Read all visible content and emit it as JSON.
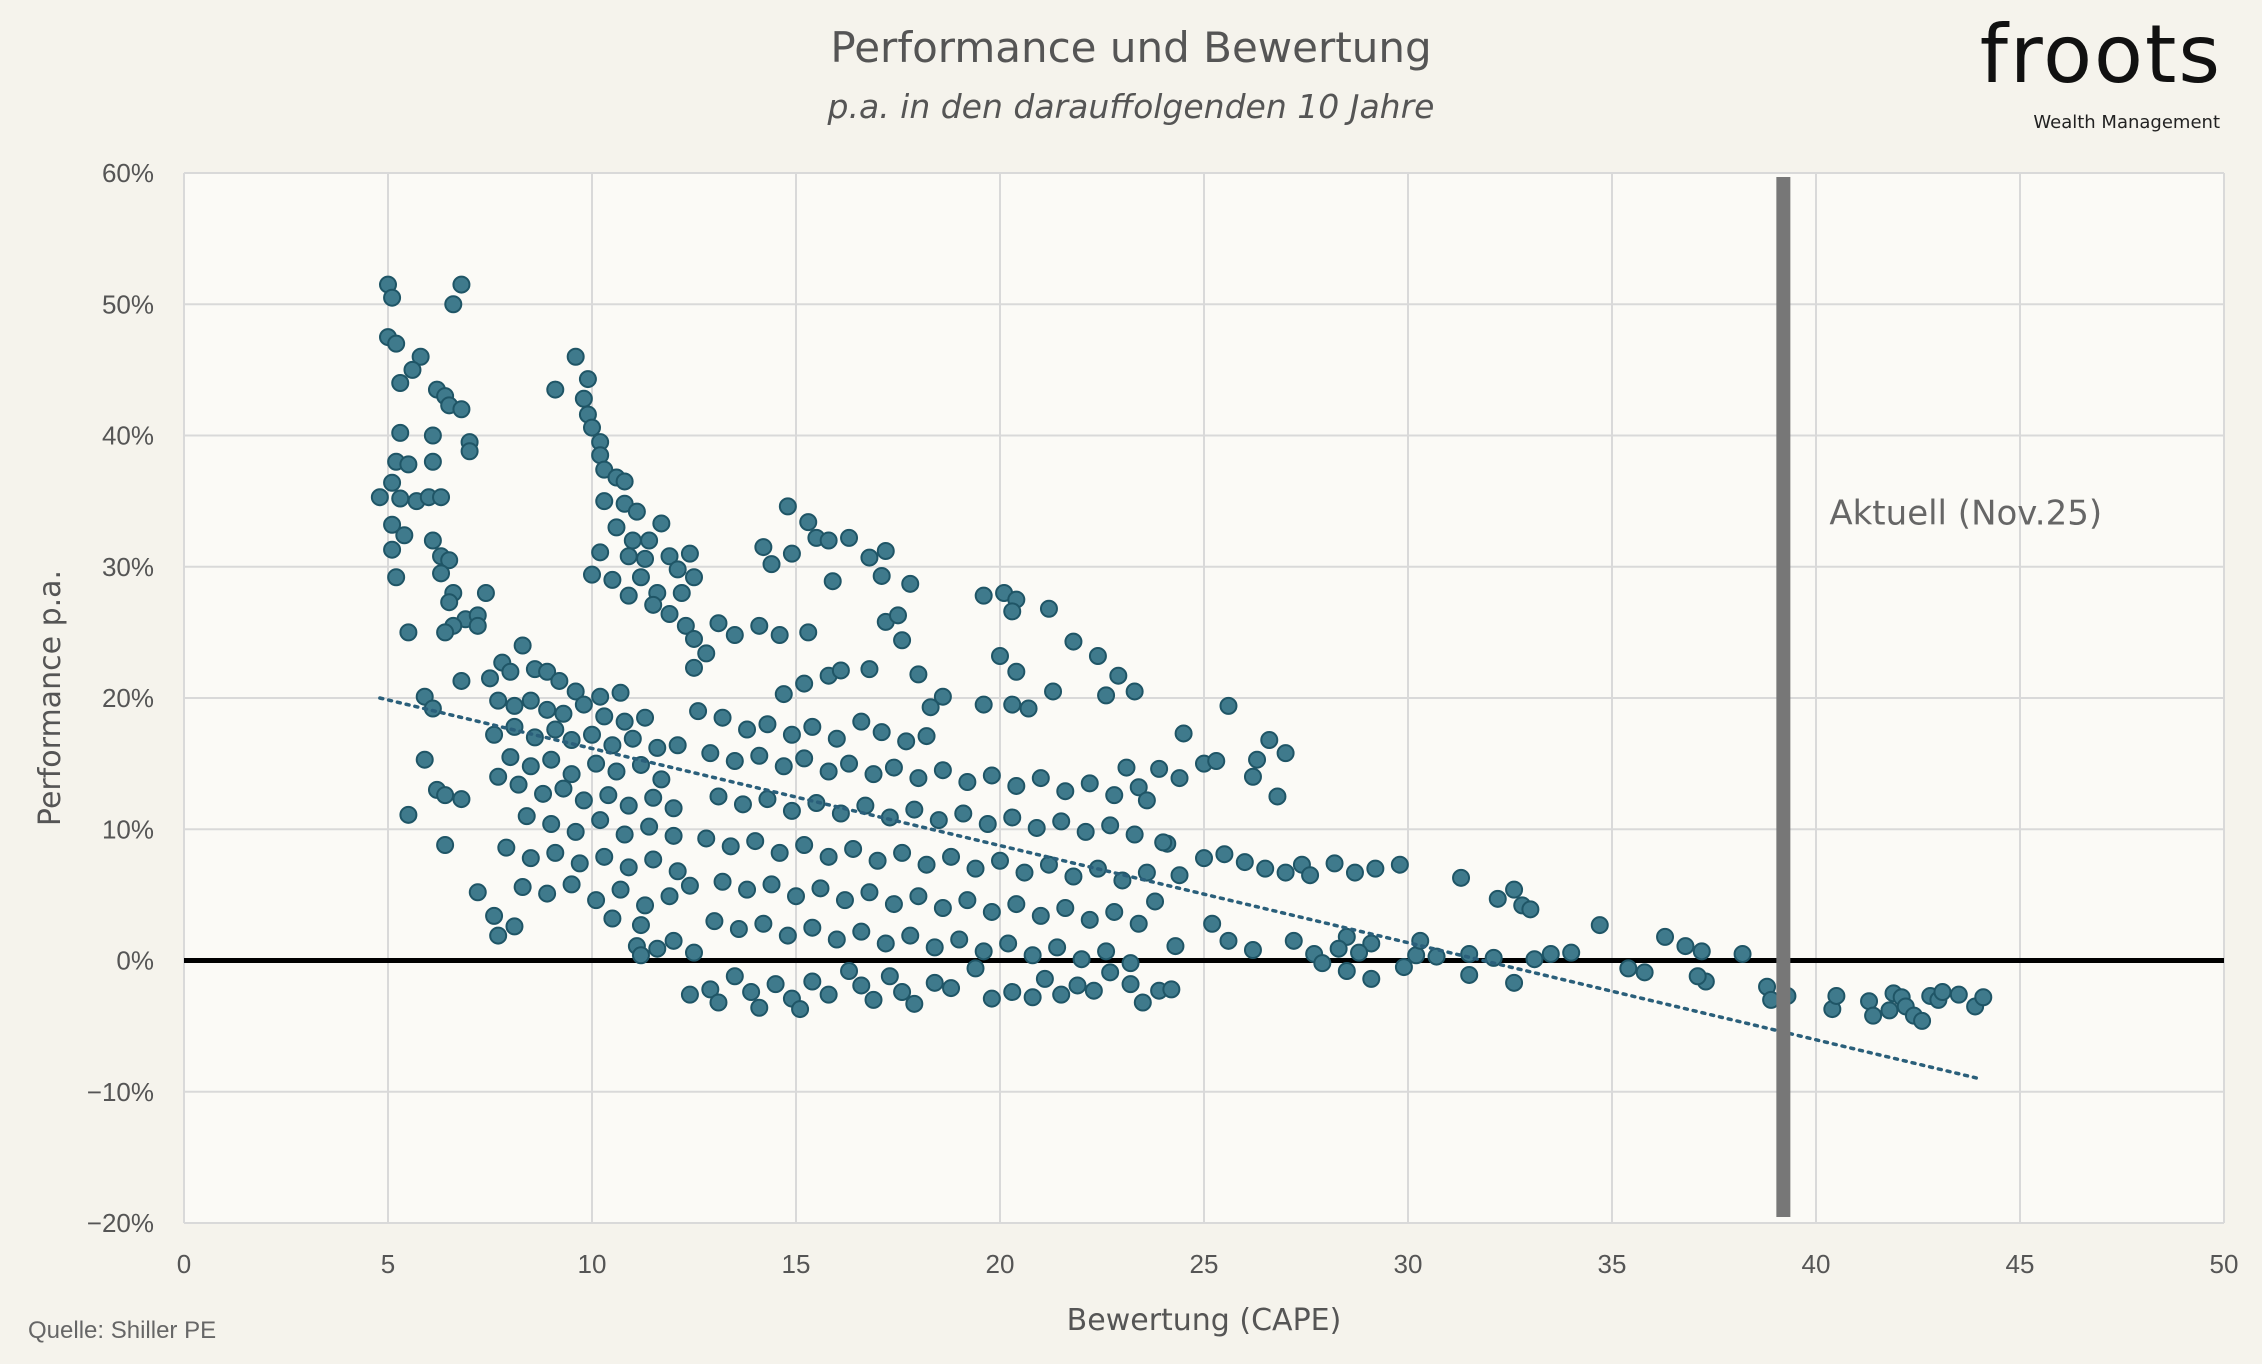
{
  "logo": {
    "name": "froots",
    "tagline": "Wealth Management"
  },
  "source": "Quelle: Shiller PE",
  "colors": {
    "background": "#f5f3ec",
    "plot_background": "#fbfaf6",
    "point_fill": "#3f7a8c",
    "point_stroke": "#1f5566",
    "trendline": "#2a5f7a",
    "marker_line": "#777777",
    "zero_line": "#000000",
    "grid": "#d9d9d9"
  },
  "chart_data": {
    "type": "scatter",
    "title": "Performance und Bewertung",
    "subtitle": "p.a. in den darauffolgenden 10 Jahre",
    "xlabel": "Bewertung (CAPE)",
    "ylabel": "Performance p.a.",
    "xlim": [
      0,
      50
    ],
    "ylim": [
      -20,
      60
    ],
    "xticks": [
      0,
      5,
      10,
      15,
      20,
      25,
      30,
      35,
      40,
      45,
      50
    ],
    "yticks": [
      -20,
      -10,
      0,
      10,
      20,
      30,
      40,
      50,
      60
    ],
    "ytick_labels": [
      "−20%",
      "−10%",
      "0%",
      "10%",
      "20%",
      "30%",
      "40%",
      "50%",
      "60%"
    ],
    "grid": true,
    "zero_line": true,
    "trendline": {
      "style": "dotted",
      "from": [
        4.8,
        20
      ],
      "to": [
        44,
        -9
      ]
    },
    "marker": {
      "x": 39.2,
      "label": "Aktuell (Nov.25)"
    },
    "points": [
      [
        5,
        51.5
      ],
      [
        5.1,
        50.5
      ],
      [
        6.6,
        50
      ],
      [
        6.8,
        51.5
      ],
      [
        5,
        47.5
      ],
      [
        5.2,
        47
      ],
      [
        5.8,
        46
      ],
      [
        5.6,
        45
      ],
      [
        5.3,
        44
      ],
      [
        6.2,
        43.5
      ],
      [
        6.4,
        43
      ],
      [
        6.5,
        42.3
      ],
      [
        6.8,
        42
      ],
      [
        5.3,
        40.2
      ],
      [
        6.1,
        40
      ],
      [
        7,
        39.5
      ],
      [
        7,
        38.8
      ],
      [
        5.2,
        38
      ],
      [
        5.5,
        37.8
      ],
      [
        6.1,
        38
      ],
      [
        5.1,
        36.4
      ],
      [
        4.8,
        35.3
      ],
      [
        5.3,
        35.2
      ],
      [
        5.7,
        35
      ],
      [
        6,
        35.3
      ],
      [
        6.3,
        35.3
      ],
      [
        5.1,
        33.2
      ],
      [
        5.4,
        32.4
      ],
      [
        6.1,
        32
      ],
      [
        5.1,
        31.3
      ],
      [
        6.3,
        30.8
      ],
      [
        6.5,
        30.5
      ],
      [
        6.3,
        29.5
      ],
      [
        5.2,
        29.2
      ],
      [
        6.6,
        28
      ],
      [
        6.5,
        27.3
      ],
      [
        7.4,
        28
      ],
      [
        6.9,
        26
      ],
      [
        7.2,
        26.3
      ],
      [
        6.6,
        25.5
      ],
      [
        6.4,
        25
      ],
      [
        5.5,
        25
      ],
      [
        7.2,
        25.5
      ],
      [
        6.8,
        21.3
      ],
      [
        5.9,
        20.1
      ],
      [
        6.1,
        19.2
      ],
      [
        5.9,
        15.3
      ],
      [
        6.2,
        13
      ],
      [
        6.4,
        12.6
      ],
      [
        6.8,
        12.3
      ],
      [
        5.5,
        11.1
      ],
      [
        6.4,
        8.8
      ],
      [
        7.2,
        5.2
      ],
      [
        7.6,
        3.4
      ],
      [
        7.7,
        1.9
      ],
      [
        8.1,
        2.6
      ],
      [
        9.6,
        46
      ],
      [
        9.9,
        44.3
      ],
      [
        9.8,
        42.8
      ],
      [
        9.9,
        41.6
      ],
      [
        9.1,
        43.5
      ],
      [
        10,
        40.6
      ],
      [
        10.2,
        39.5
      ],
      [
        10.2,
        38.5
      ],
      [
        10.3,
        37.4
      ],
      [
        10.6,
        36.8
      ],
      [
        10.8,
        36.5
      ],
      [
        10.3,
        35
      ],
      [
        10.8,
        34.8
      ],
      [
        11.1,
        34.2
      ],
      [
        10.6,
        33
      ],
      [
        11,
        32
      ],
      [
        11.7,
        33.3
      ],
      [
        11.4,
        32
      ],
      [
        10.2,
        31.1
      ],
      [
        10.9,
        30.8
      ],
      [
        11.3,
        30.6
      ],
      [
        11.9,
        30.8
      ],
      [
        12.4,
        31
      ],
      [
        12.1,
        29.8
      ],
      [
        10,
        29.4
      ],
      [
        10.5,
        29
      ],
      [
        11.2,
        29.2
      ],
      [
        12.5,
        29.2
      ],
      [
        10.9,
        27.8
      ],
      [
        11.6,
        28
      ],
      [
        12.2,
        28
      ],
      [
        11.5,
        27.1
      ],
      [
        11.9,
        26.4
      ],
      [
        12.3,
        25.5
      ],
      [
        12.5,
        24.5
      ],
      [
        13.1,
        25.7
      ],
      [
        12.8,
        23.4
      ],
      [
        13.5,
        24.8
      ],
      [
        12.5,
        22.3
      ],
      [
        14.1,
        25.5
      ],
      [
        14.6,
        24.8
      ],
      [
        15.3,
        25
      ],
      [
        15.8,
        21.7
      ],
      [
        15.2,
        21.1
      ],
      [
        14.7,
        20.3
      ],
      [
        14.4,
        30.2
      ],
      [
        14.2,
        31.5
      ],
      [
        14.9,
        31
      ],
      [
        14.8,
        34.6
      ],
      [
        15.3,
        33.4
      ],
      [
        15.5,
        32.2
      ],
      [
        15.8,
        32
      ],
      [
        16.3,
        32.2
      ],
      [
        16.8,
        30.7
      ],
      [
        17.2,
        31.2
      ],
      [
        17.1,
        29.3
      ],
      [
        17.8,
        28.7
      ],
      [
        15.9,
        28.9
      ],
      [
        16.1,
        22.1
      ],
      [
        16.8,
        22.2
      ],
      [
        17.6,
        24.4
      ],
      [
        17.2,
        25.8
      ],
      [
        17.5,
        26.3
      ],
      [
        18,
        21.8
      ],
      [
        18.6,
        20.1
      ],
      [
        19.6,
        27.8
      ],
      [
        20.1,
        28
      ],
      [
        20.4,
        27.5
      ],
      [
        20.3,
        26.6
      ],
      [
        21.2,
        26.8
      ],
      [
        20,
        23.2
      ],
      [
        20.4,
        22
      ],
      [
        21.8,
        24.3
      ],
      [
        22.4,
        23.2
      ],
      [
        22.9,
        21.7
      ],
      [
        23.3,
        20.5
      ],
      [
        22.6,
        20.2
      ],
      [
        21.3,
        20.5
      ],
      [
        20.7,
        19.2
      ],
      [
        20.3,
        19.5
      ],
      [
        19.6,
        19.5
      ],
      [
        18.3,
        19.3
      ],
      [
        7.5,
        21.5
      ],
      [
        7.8,
        22.7
      ],
      [
        8,
        22
      ],
      [
        8.3,
        24
      ],
      [
        8.6,
        22.2
      ],
      [
        8.9,
        22
      ],
      [
        9.2,
        21.3
      ],
      [
        9.6,
        20.5
      ],
      [
        10.2,
        20.1
      ],
      [
        10.7,
        20.4
      ],
      [
        7.7,
        19.8
      ],
      [
        8.1,
        19.4
      ],
      [
        8.5,
        19.8
      ],
      [
        8.9,
        19.1
      ],
      [
        9.3,
        18.8
      ],
      [
        9.8,
        19.5
      ],
      [
        10.3,
        18.6
      ],
      [
        10.8,
        18.2
      ],
      [
        11.3,
        18.5
      ],
      [
        7.6,
        17.2
      ],
      [
        8.1,
        17.8
      ],
      [
        8.6,
        17
      ],
      [
        9.1,
        17.6
      ],
      [
        9.5,
        16.8
      ],
      [
        10,
        17.2
      ],
      [
        10.5,
        16.4
      ],
      [
        11,
        16.9
      ],
      [
        11.6,
        16.2
      ],
      [
        12.1,
        16.4
      ],
      [
        8,
        15.5
      ],
      [
        8.5,
        14.8
      ],
      [
        9,
        15.3
      ],
      [
        9.5,
        14.2
      ],
      [
        10.1,
        15
      ],
      [
        10.6,
        14.4
      ],
      [
        11.2,
        14.9
      ],
      [
        11.7,
        13.8
      ],
      [
        8.2,
        13.4
      ],
      [
        8.8,
        12.7
      ],
      [
        9.3,
        13.1
      ],
      [
        9.8,
        12.2
      ],
      [
        10.4,
        12.6
      ],
      [
        10.9,
        11.8
      ],
      [
        11.5,
        12.4
      ],
      [
        12,
        11.6
      ],
      [
        7.7,
        14
      ],
      [
        8.4,
        11
      ],
      [
        9,
        10.4
      ],
      [
        9.6,
        9.8
      ],
      [
        10.2,
        10.7
      ],
      [
        10.8,
        9.6
      ],
      [
        11.4,
        10.2
      ],
      [
        12,
        9.5
      ],
      [
        7.9,
        8.6
      ],
      [
        8.5,
        7.8
      ],
      [
        9.1,
        8.2
      ],
      [
        9.7,
        7.4
      ],
      [
        10.3,
        7.9
      ],
      [
        10.9,
        7.1
      ],
      [
        11.5,
        7.7
      ],
      [
        12.1,
        6.8
      ],
      [
        8.3,
        5.6
      ],
      [
        8.9,
        5.1
      ],
      [
        9.5,
        5.8
      ],
      [
        10.1,
        4.6
      ],
      [
        10.7,
        5.4
      ],
      [
        11.3,
        4.2
      ],
      [
        11.9,
        4.9
      ],
      [
        12.4,
        5.7
      ],
      [
        10.5,
        3.2
      ],
      [
        11.2,
        2.7
      ],
      [
        11.1,
        1.1
      ],
      [
        11.6,
        0.9
      ],
      [
        12,
        1.5
      ],
      [
        12.5,
        0.6
      ],
      [
        11.2,
        0.4
      ],
      [
        12.6,
        19
      ],
      [
        13.2,
        18.5
      ],
      [
        13.8,
        17.6
      ],
      [
        14.3,
        18
      ],
      [
        14.9,
        17.2
      ],
      [
        15.4,
        17.8
      ],
      [
        16,
        16.9
      ],
      [
        16.6,
        18.2
      ],
      [
        17.1,
        17.4
      ],
      [
        17.7,
        16.7
      ],
      [
        18.2,
        17.1
      ],
      [
        12.9,
        15.8
      ],
      [
        13.5,
        15.2
      ],
      [
        14.1,
        15.6
      ],
      [
        14.7,
        14.8
      ],
      [
        15.2,
        15.4
      ],
      [
        15.8,
        14.4
      ],
      [
        16.3,
        15
      ],
      [
        16.9,
        14.2
      ],
      [
        17.4,
        14.7
      ],
      [
        18,
        13.9
      ],
      [
        18.6,
        14.5
      ],
      [
        19.2,
        13.6
      ],
      [
        19.8,
        14.1
      ],
      [
        20.4,
        13.3
      ],
      [
        21,
        13.9
      ],
      [
        21.6,
        12.9
      ],
      [
        22.2,
        13.5
      ],
      [
        22.8,
        12.6
      ],
      [
        23.4,
        13.2
      ],
      [
        23.9,
        14.6
      ],
      [
        13.1,
        12.5
      ],
      [
        13.7,
        11.9
      ],
      [
        14.3,
        12.3
      ],
      [
        14.9,
        11.4
      ],
      [
        15.5,
        12
      ],
      [
        16.1,
        11.2
      ],
      [
        16.7,
        11.8
      ],
      [
        17.3,
        10.9
      ],
      [
        17.9,
        11.5
      ],
      [
        18.5,
        10.7
      ],
      [
        19.1,
        11.2
      ],
      [
        19.7,
        10.4
      ],
      [
        20.3,
        10.9
      ],
      [
        20.9,
        10.1
      ],
      [
        21.5,
        10.6
      ],
      [
        22.1,
        9.8
      ],
      [
        22.7,
        10.3
      ],
      [
        23.3,
        9.6
      ],
      [
        12.8,
        9.3
      ],
      [
        13.4,
        8.7
      ],
      [
        14,
        9.1
      ],
      [
        14.6,
        8.2
      ],
      [
        15.2,
        8.8
      ],
      [
        15.8,
        7.9
      ],
      [
        16.4,
        8.5
      ],
      [
        17,
        7.6
      ],
      [
        17.6,
        8.2
      ],
      [
        18.2,
        7.3
      ],
      [
        18.8,
        7.9
      ],
      [
        19.4,
        7
      ],
      [
        20,
        7.6
      ],
      [
        20.6,
        6.7
      ],
      [
        21.2,
        7.3
      ],
      [
        21.8,
        6.4
      ],
      [
        22.4,
        7
      ],
      [
        23,
        6.1
      ],
      [
        23.6,
        6.7
      ],
      [
        13.2,
        6
      ],
      [
        13.8,
        5.4
      ],
      [
        14.4,
        5.8
      ],
      [
        15,
        4.9
      ],
      [
        15.6,
        5.5
      ],
      [
        16.2,
        4.6
      ],
      [
        16.8,
        5.2
      ],
      [
        17.4,
        4.3
      ],
      [
        18,
        4.9
      ],
      [
        18.6,
        4
      ],
      [
        19.2,
        4.6
      ],
      [
        19.8,
        3.7
      ],
      [
        20.4,
        4.3
      ],
      [
        21,
        3.4
      ],
      [
        21.6,
        4
      ],
      [
        22.2,
        3.1
      ],
      [
        22.8,
        3.7
      ],
      [
        23.4,
        2.8
      ],
      [
        13,
        3
      ],
      [
        13.6,
        2.4
      ],
      [
        14.2,
        2.8
      ],
      [
        14.8,
        1.9
      ],
      [
        15.4,
        2.5
      ],
      [
        16,
        1.6
      ],
      [
        16.6,
        2.2
      ],
      [
        17.2,
        1.3
      ],
      [
        17.8,
        1.9
      ],
      [
        18.4,
        1
      ],
      [
        19,
        1.6
      ],
      [
        19.6,
        0.7
      ],
      [
        20.2,
        1.3
      ],
      [
        20.8,
        0.4
      ],
      [
        21.4,
        1
      ],
      [
        22,
        0.1
      ],
      [
        22.6,
        0.7
      ],
      [
        23.2,
        -0.2
      ],
      [
        12.4,
        -2.6
      ],
      [
        12.9,
        -2.2
      ],
      [
        13.1,
        -3.2
      ],
      [
        13.5,
        -1.2
      ],
      [
        13.9,
        -2.4
      ],
      [
        14.1,
        -3.6
      ],
      [
        14.5,
        -1.8
      ],
      [
        14.9,
        -2.9
      ],
      [
        15.1,
        -3.7
      ],
      [
        15.4,
        -1.6
      ],
      [
        15.8,
        -2.6
      ],
      [
        16.3,
        -0.8
      ],
      [
        16.6,
        -1.9
      ],
      [
        16.9,
        -3
      ],
      [
        17.3,
        -1.2
      ],
      [
        17.6,
        -2.4
      ],
      [
        17.9,
        -3.3
      ],
      [
        18.4,
        -1.7
      ],
      [
        18.8,
        -2.1
      ],
      [
        19.4,
        -0.6
      ],
      [
        19.8,
        -2.9
      ],
      [
        20.3,
        -2.4
      ],
      [
        20.8,
        -2.8
      ],
      [
        21.1,
        -1.4
      ],
      [
        21.5,
        -2.6
      ],
      [
        21.9,
        -1.9
      ],
      [
        22.3,
        -2.3
      ],
      [
        22.7,
        -0.9
      ],
      [
        23.2,
        -1.8
      ],
      [
        23.5,
        -3.2
      ],
      [
        23.9,
        -2.3
      ],
      [
        24.2,
        -2.2
      ],
      [
        24.3,
        1.1
      ],
      [
        23.8,
        4.5
      ],
      [
        24.1,
        8.9
      ],
      [
        23.1,
        14.7
      ],
      [
        23.6,
        12.2
      ],
      [
        24.5,
        17.3
      ],
      [
        25.6,
        19.4
      ],
      [
        25,
        15
      ],
      [
        25.3,
        15.2
      ],
      [
        26.3,
        15.3
      ],
      [
        26.6,
        16.8
      ],
      [
        27,
        15.8
      ],
      [
        26.8,
        12.5
      ],
      [
        26.2,
        14
      ],
      [
        24.4,
        13.9
      ],
      [
        24,
        9
      ],
      [
        24.4,
        6.5
      ],
      [
        25,
        7.8
      ],
      [
        25.5,
        8.1
      ],
      [
        26,
        7.5
      ],
      [
        26.5,
        7
      ],
      [
        27,
        6.7
      ],
      [
        27.4,
        7.3
      ],
      [
        27.6,
        6.5
      ],
      [
        28.2,
        7.4
      ],
      [
        28.7,
        6.7
      ],
      [
        29.2,
        7
      ],
      [
        29.8,
        7.3
      ],
      [
        31.3,
        6.3
      ],
      [
        32.2,
        4.7
      ],
      [
        32.6,
        5.4
      ],
      [
        32.8,
        4.2
      ],
      [
        33,
        3.9
      ],
      [
        25.2,
        2.8
      ],
      [
        25.6,
        1.5
      ],
      [
        26.2,
        0.8
      ],
      [
        27.2,
        1.5
      ],
      [
        27.7,
        0.5
      ],
      [
        28.5,
        1.8
      ],
      [
        29.1,
        1.3
      ],
      [
        28.3,
        0.9
      ],
      [
        28.8,
        0.6
      ],
      [
        27.9,
        -0.2
      ],
      [
        28.5,
        -0.8
      ],
      [
        29.1,
        -1.4
      ],
      [
        29.9,
        -0.5
      ],
      [
        30.2,
        0.4
      ],
      [
        30.3,
        1.5
      ],
      [
        30.7,
        0.3
      ],
      [
        31.5,
        0.5
      ],
      [
        31.5,
        -1.1
      ],
      [
        32.1,
        0.2
      ],
      [
        32.6,
        -1.7
      ],
      [
        33.1,
        0.1
      ],
      [
        33.5,
        0.5
      ],
      [
        34,
        0.6
      ],
      [
        34.7,
        2.7
      ],
      [
        35.4,
        -0.6
      ],
      [
        35.8,
        -0.9
      ],
      [
        36.3,
        1.8
      ],
      [
        36.8,
        1.1
      ],
      [
        37.2,
        0.7
      ],
      [
        37.3,
        -1.6
      ],
      [
        37.1,
        -1.2
      ],
      [
        38.2,
        0.5
      ],
      [
        38.8,
        -2
      ],
      [
        38.9,
        -3
      ],
      [
        39.3,
        -2.7
      ],
      [
        40.4,
        -3.7
      ],
      [
        40.5,
        -2.7
      ],
      [
        41.3,
        -3.1
      ],
      [
        41.4,
        -4.2
      ],
      [
        41.9,
        -2.5
      ],
      [
        42.1,
        -2.8
      ],
      [
        42.2,
        -3.5
      ],
      [
        42.4,
        -4.2
      ],
      [
        42.6,
        -4.6
      ],
      [
        42.8,
        -2.7
      ],
      [
        43,
        -3
      ],
      [
        43.1,
        -2.4
      ],
      [
        43.5,
        -2.6
      ],
      [
        43.9,
        -3.5
      ],
      [
        44.1,
        -2.8
      ],
      [
        41.8,
        -3.8
      ]
    ]
  }
}
